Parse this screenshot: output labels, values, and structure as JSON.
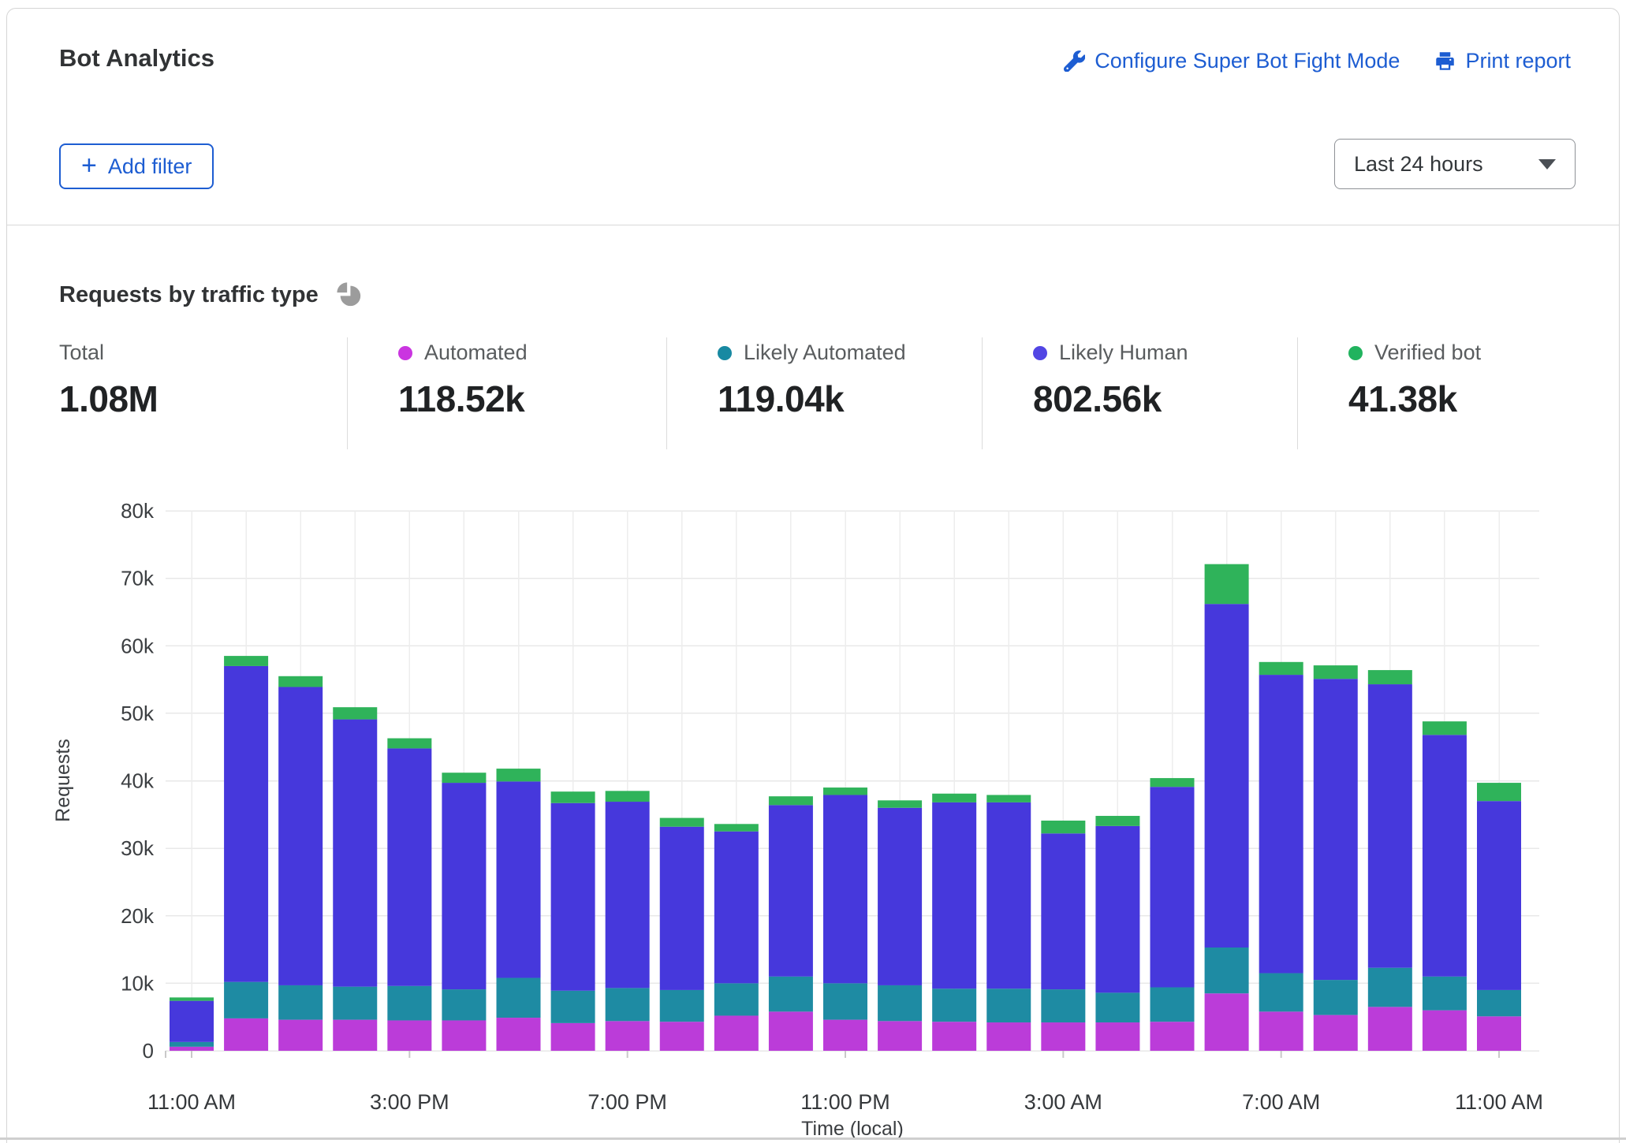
{
  "header": {
    "title": "Bot Analytics",
    "configure_label": "Configure Super Bot Fight Mode",
    "print_label": "Print report",
    "add_filter": {
      "icon": "+",
      "label": "Add filter"
    },
    "time_range": {
      "value": "Last 24 hours"
    }
  },
  "section": {
    "title": "Requests by traffic type"
  },
  "icons": {
    "configure": "wrench-icon",
    "print": "printer-icon",
    "section": "pie-chart-icon",
    "select_caret": "chevron-down-icon",
    "pie_color": "#9c9c9c"
  },
  "stats": [
    {
      "label": "Total",
      "value": "1.08M",
      "color": null
    },
    {
      "label": "Automated",
      "value": "118.52k",
      "color": "#ca35e0"
    },
    {
      "label": "Likely Automated",
      "value": "119.04k",
      "color": "#1889a2"
    },
    {
      "label": "Likely Human",
      "value": "802.56k",
      "color": "#5246e4"
    },
    {
      "label": "Verified bot",
      "value": "41.38k",
      "color": "#21b35e"
    }
  ],
  "chart_data": {
    "type": "bar",
    "stacked": true,
    "title": "Requests by traffic type",
    "xlabel": "Time (local)",
    "ylabel": "Requests",
    "ylim": [
      0,
      80000
    ],
    "grid": true,
    "legend_position": "top",
    "ytick_labels": [
      "0",
      "10k",
      "20k",
      "30k",
      "40k",
      "50k",
      "60k",
      "70k",
      "80k"
    ],
    "xtick_every": 4,
    "x": [
      "11:00 AM",
      "12:00 PM",
      "1:00 PM",
      "2:00 PM",
      "3:00 PM",
      "4:00 PM",
      "5:00 PM",
      "6:00 PM",
      "7:00 PM",
      "8:00 PM",
      "9:00 PM",
      "10:00 PM",
      "11:00 PM",
      "12:00 AM",
      "1:00 AM",
      "2:00 AM",
      "3:00 AM",
      "4:00 AM",
      "5:00 AM",
      "6:00 AM",
      "7:00 AM",
      "8:00 AM",
      "9:00 AM",
      "10:00 AM",
      "11:00 AM"
    ],
    "series": [
      {
        "name": "Automated",
        "color": "#bb3cd9",
        "values": [
          600,
          4800,
          4600,
          4600,
          4500,
          4500,
          4900,
          4100,
          4400,
          4300,
          5200,
          5800,
          4600,
          4400,
          4300,
          4200,
          4200,
          4200,
          4300,
          8500,
          5800,
          5300,
          6500,
          6000,
          5100
        ]
      },
      {
        "name": "Likely Automated",
        "color": "#1e8ba3",
        "values": [
          700,
          5400,
          5100,
          4900,
          5100,
          4600,
          5900,
          4800,
          4900,
          4700,
          4800,
          5200,
          5400,
          5300,
          4900,
          5000,
          4900,
          4400,
          5100,
          6800,
          5700,
          5200,
          5800,
          5000,
          3900
        ]
      },
      {
        "name": "Likely Human",
        "color": "#4638dc",
        "values": [
          6100,
          46800,
          44200,
          39600,
          35200,
          30600,
          29100,
          27800,
          27600,
          24200,
          22500,
          25400,
          27900,
          26300,
          27600,
          27600,
          23100,
          24700,
          29700,
          50900,
          44200,
          44600,
          42000,
          35800,
          28000
        ]
      },
      {
        "name": "Verified bot",
        "color": "#2fb35a",
        "values": [
          500,
          1500,
          1600,
          1800,
          1500,
          1500,
          1900,
          1700,
          1600,
          1300,
          1100,
          1300,
          1100,
          1100,
          1300,
          1100,
          1900,
          1500,
          1300,
          5900,
          1900,
          2000,
          2100,
          2000,
          2700
        ]
      }
    ]
  }
}
